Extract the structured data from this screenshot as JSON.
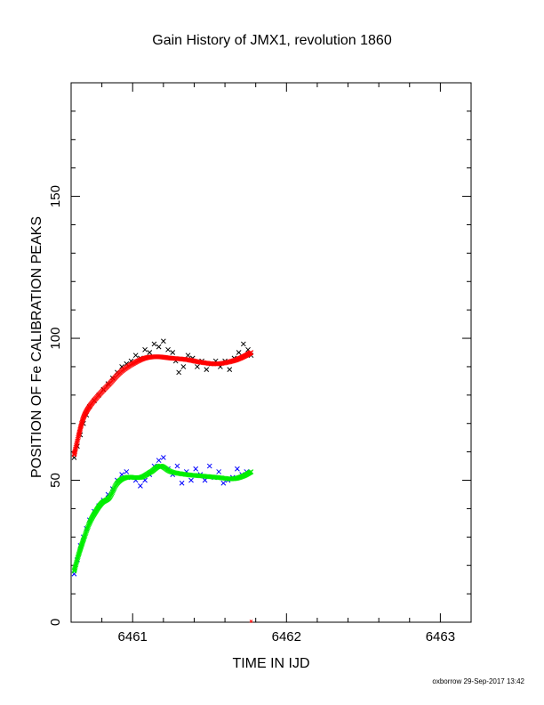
{
  "chart_data": {
    "type": "scatter",
    "title": "Gain History of JMX1, revolution 1860",
    "xlabel": "TIME IN IJD",
    "ylabel": "POSITION OF Fe CALIBRATION PEAKS",
    "xlim": [
      6460.6,
      6463.2
    ],
    "ylim": [
      0,
      190
    ],
    "xticks": [
      6461,
      6462,
      6463
    ],
    "yticks": [
      0,
      50,
      100,
      150
    ],
    "grid": false,
    "legend": "none",
    "series": [
      {
        "marker": "x",
        "color": "#000000",
        "points": [
          [
            6460.62,
            58
          ],
          [
            6460.64,
            62
          ],
          [
            6460.66,
            66
          ],
          [
            6460.68,
            70
          ],
          [
            6460.7,
            73
          ],
          [
            6460.72,
            76
          ],
          [
            6460.75,
            78
          ],
          [
            6460.78,
            80
          ],
          [
            6460.81,
            82
          ],
          [
            6460.84,
            84
          ],
          [
            6460.87,
            86
          ],
          [
            6460.9,
            88
          ],
          [
            6460.93,
            90
          ],
          [
            6460.96,
            91
          ],
          [
            6460.99,
            92
          ],
          [
            6461.02,
            94
          ],
          [
            6461.05,
            93
          ],
          [
            6461.08,
            96
          ],
          [
            6461.11,
            95
          ],
          [
            6461.14,
            98
          ],
          [
            6461.17,
            97
          ],
          [
            6461.2,
            99
          ],
          [
            6461.23,
            96
          ],
          [
            6461.26,
            95
          ],
          [
            6461.28,
            92
          ],
          [
            6461.3,
            88
          ],
          [
            6461.33,
            90
          ],
          [
            6461.36,
            94
          ],
          [
            6461.39,
            93
          ],
          [
            6461.42,
            90
          ],
          [
            6461.45,
            92
          ],
          [
            6461.48,
            89
          ],
          [
            6461.51,
            91
          ],
          [
            6461.54,
            92
          ],
          [
            6461.57,
            90
          ],
          [
            6461.6,
            92
          ],
          [
            6461.63,
            89
          ],
          [
            6461.66,
            93
          ],
          [
            6461.69,
            95
          ],
          [
            6461.72,
            98
          ],
          [
            6461.75,
            96
          ],
          [
            6461.77,
            94
          ]
        ]
      },
      {
        "marker": "x",
        "color": "#ff0000",
        "curve": true,
        "points": [
          [
            6460.62,
            59
          ],
          [
            6460.65,
            66
          ],
          [
            6460.68,
            72
          ],
          [
            6460.72,
            76
          ],
          [
            6460.78,
            80
          ],
          [
            6460.85,
            84
          ],
          [
            6460.92,
            88
          ],
          [
            6461.0,
            91
          ],
          [
            6461.08,
            93
          ],
          [
            6461.16,
            93.5
          ],
          [
            6461.25,
            93
          ],
          [
            6461.35,
            92.5
          ],
          [
            6461.45,
            91.5
          ],
          [
            6461.55,
            91
          ],
          [
            6461.65,
            92
          ],
          [
            6461.72,
            93.5
          ],
          [
            6461.77,
            95
          ]
        ]
      },
      {
        "marker": "x",
        "color": "#0000ff",
        "points": [
          [
            6460.62,
            17
          ],
          [
            6460.64,
            22
          ],
          [
            6460.66,
            27
          ],
          [
            6460.68,
            30
          ],
          [
            6460.7,
            33
          ],
          [
            6460.72,
            36
          ],
          [
            6460.75,
            39
          ],
          [
            6460.78,
            41
          ],
          [
            6460.81,
            43
          ],
          [
            6460.84,
            45
          ],
          [
            6460.87,
            47
          ],
          [
            6460.9,
            50
          ],
          [
            6460.93,
            52
          ],
          [
            6460.96,
            53
          ],
          [
            6460.99,
            51
          ],
          [
            6461.02,
            50
          ],
          [
            6461.05,
            48
          ],
          [
            6461.08,
            50
          ],
          [
            6461.11,
            52
          ],
          [
            6461.14,
            55
          ],
          [
            6461.17,
            57
          ],
          [
            6461.2,
            58
          ],
          [
            6461.23,
            54
          ],
          [
            6461.26,
            52
          ],
          [
            6461.29,
            55
          ],
          [
            6461.32,
            49
          ],
          [
            6461.35,
            53
          ],
          [
            6461.38,
            50
          ],
          [
            6461.41,
            54
          ],
          [
            6461.44,
            52
          ],
          [
            6461.47,
            50
          ],
          [
            6461.5,
            55
          ],
          [
            6461.53,
            51
          ],
          [
            6461.56,
            53
          ],
          [
            6461.59,
            49
          ],
          [
            6461.62,
            50
          ],
          [
            6461.65,
            51
          ],
          [
            6461.68,
            54
          ],
          [
            6461.71,
            52
          ],
          [
            6461.74,
            53
          ]
        ]
      },
      {
        "marker": "x",
        "color": "#00ee00",
        "curve": true,
        "points": [
          [
            6460.62,
            18
          ],
          [
            6460.65,
            24
          ],
          [
            6460.68,
            29
          ],
          [
            6460.72,
            35
          ],
          [
            6460.76,
            39
          ],
          [
            6460.8,
            42
          ],
          [
            6460.85,
            44
          ],
          [
            6460.9,
            49
          ],
          [
            6460.96,
            51
          ],
          [
            6461.05,
            51
          ],
          [
            6461.12,
            53
          ],
          [
            6461.18,
            55
          ],
          [
            6461.25,
            53
          ],
          [
            6461.35,
            52
          ],
          [
            6461.45,
            51.5
          ],
          [
            6461.55,
            51
          ],
          [
            6461.65,
            50.5
          ],
          [
            6461.72,
            51.5
          ],
          [
            6461.77,
            53
          ]
        ]
      }
    ]
  },
  "footer": "oxborrow 29-Sep-2017 13:42"
}
